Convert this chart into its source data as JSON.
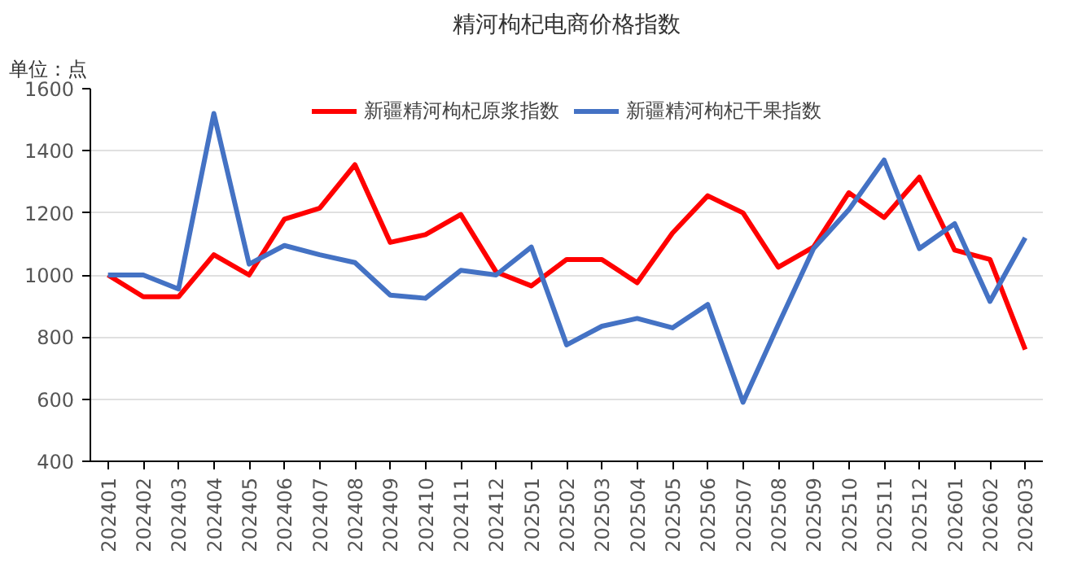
{
  "chart_data": {
    "type": "line",
    "title": "精河枸杞电商价格指数",
    "ylabel": "单位：点",
    "categories": [
      "202401",
      "202402",
      "202403",
      "202404",
      "202405",
      "202406",
      "202407",
      "202408",
      "202409",
      "202410",
      "202411",
      "202412",
      "202501",
      "202502",
      "202503",
      "202504",
      "202505",
      "202506",
      "202507",
      "202508",
      "202509",
      "202510",
      "202511",
      "202512",
      "202601",
      "202602",
      "202603"
    ],
    "series": [
      {
        "name": "新疆精河枸杞原浆指数",
        "color": "#ff0000",
        "values": [
          1000,
          930,
          930,
          1065,
          1000,
          1180,
          1215,
          1355,
          1105,
          1130,
          1195,
          1010,
          965,
          1050,
          1050,
          975,
          1135,
          1255,
          1200,
          1025,
          1090,
          1265,
          1185,
          1315,
          1080,
          1050,
          760
        ]
      },
      {
        "name": "新疆精河枸杞干果指数",
        "color": "#4472c4",
        "values": [
          1000,
          1000,
          955,
          1520,
          1035,
          1095,
          1065,
          1040,
          935,
          925,
          1015,
          1000,
          1090,
          775,
          835,
          860,
          830,
          905,
          590,
          840,
          1085,
          1210,
          1370,
          1085,
          1165,
          915,
          1120
        ]
      }
    ],
    "ylim": [
      400,
      1600
    ],
    "yticks": [
      400,
      600,
      800,
      1000,
      1200,
      1400,
      1600
    ],
    "grid": "y",
    "legend": "top",
    "line_style": "solid",
    "marker": "none"
  }
}
